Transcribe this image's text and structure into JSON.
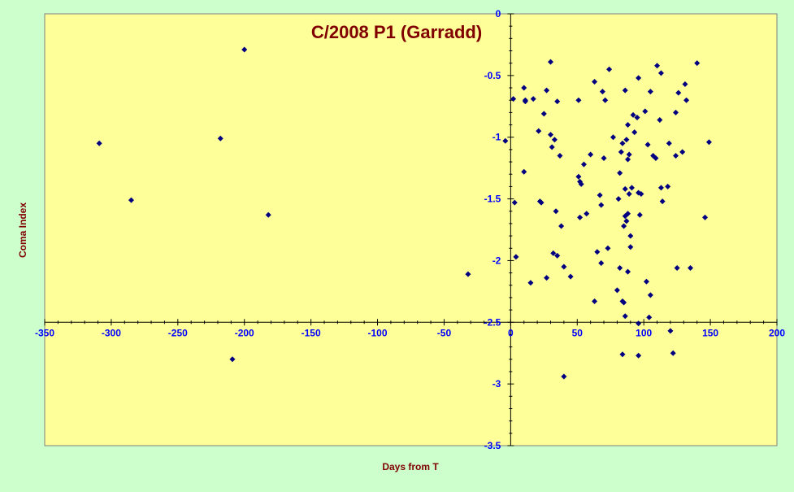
{
  "chart_data": {
    "type": "scatter",
    "title": "C/2008 P1 (Garradd)",
    "xlabel": "Days from T",
    "ylabel": "Coma Index",
    "xlim": [
      -350,
      200
    ],
    "ylim": [
      -3.5,
      0
    ],
    "x_ticks": [
      "-350",
      "-300",
      "-250",
      "-200",
      "-150",
      "-100",
      "-50",
      "0",
      "50",
      "100",
      "150",
      "200"
    ],
    "y_ticks": [
      "0",
      "-0.5",
      "-1",
      "-1.5",
      "-2",
      "-2.5",
      "-3",
      "-3.5"
    ],
    "grid": false,
    "legend": false,
    "colors": {
      "background": "#CCFFCC",
      "plot_area": "#FFFF99",
      "marker": "#000080",
      "tick_labels": "#0000FF",
      "titles": "#800000"
    },
    "series": [
      {
        "marker": "diamond",
        "points": [
          [
            -309,
            -1.05
          ],
          [
            -285,
            -1.51
          ],
          [
            -218,
            -1.01
          ],
          [
            -209,
            -2.8
          ],
          [
            -200,
            -0.29
          ],
          [
            -182,
            -1.63
          ],
          [
            -32,
            -2.11
          ],
          [
            -4,
            -1.03
          ],
          [
            2,
            -0.69
          ],
          [
            3,
            -1.53
          ],
          [
            4,
            -1.97
          ],
          [
            10,
            -0.6
          ],
          [
            10,
            -1.28
          ],
          [
            11,
            -0.7
          ],
          [
            11,
            -0.71
          ],
          [
            15,
            -2.18
          ],
          [
            17,
            -0.69
          ],
          [
            21,
            -0.95
          ],
          [
            22,
            -1.52
          ],
          [
            23,
            -1.53
          ],
          [
            25,
            -0.81
          ],
          [
            27,
            -2.14
          ],
          [
            27,
            -0.62
          ],
          [
            30,
            -0.39
          ],
          [
            30,
            -0.98
          ],
          [
            31,
            -1.08
          ],
          [
            32,
            -1.94
          ],
          [
            33,
            -1.02
          ],
          [
            34,
            -1.6
          ],
          [
            35,
            -0.71
          ],
          [
            35,
            -1.96
          ],
          [
            37,
            -1.15
          ],
          [
            38,
            -1.72
          ],
          [
            40,
            -2.05
          ],
          [
            40,
            -2.94
          ],
          [
            45,
            -2.13
          ],
          [
            51,
            -0.7
          ],
          [
            51,
            -1.32
          ],
          [
            52,
            -1.36
          ],
          [
            52,
            -1.65
          ],
          [
            53,
            -1.38
          ],
          [
            55,
            -1.22
          ],
          [
            57,
            -1.62
          ],
          [
            60,
            -1.14
          ],
          [
            63,
            -2.33
          ],
          [
            63,
            -0.55
          ],
          [
            65,
            -1.93
          ],
          [
            67,
            -1.47
          ],
          [
            68,
            -1.55
          ],
          [
            68,
            -2.02
          ],
          [
            69,
            -0.63
          ],
          [
            70,
            -1.17
          ],
          [
            71,
            -0.7
          ],
          [
            73,
            -1.9
          ],
          [
            74,
            -0.45
          ],
          [
            77,
            -1.0
          ],
          [
            80,
            -2.24
          ],
          [
            81,
            -1.5
          ],
          [
            82,
            -2.06
          ],
          [
            82,
            -1.29
          ],
          [
            83,
            -1.12
          ],
          [
            84,
            -1.05
          ],
          [
            84,
            -2.33
          ],
          [
            84,
            -2.76
          ],
          [
            85,
            -2.34
          ],
          [
            85,
            -1.72
          ],
          [
            86,
            -1.64
          ],
          [
            86,
            -1.42
          ],
          [
            86,
            -0.62
          ],
          [
            86,
            -2.45
          ],
          [
            87,
            -1.02
          ],
          [
            87,
            -1.68
          ],
          [
            88,
            -1.18
          ],
          [
            88,
            -1.62
          ],
          [
            88,
            -0.9
          ],
          [
            88,
            -2.09
          ],
          [
            89,
            -1.14
          ],
          [
            89,
            -1.46
          ],
          [
            90,
            -1.89
          ],
          [
            90,
            -1.8
          ],
          [
            91,
            -1.41
          ],
          [
            92,
            -0.82
          ],
          [
            93,
            -0.96
          ],
          [
            95,
            -0.84
          ],
          [
            96,
            -1.45
          ],
          [
            96,
            -0.52
          ],
          [
            96,
            -2.51
          ],
          [
            96,
            -2.77
          ],
          [
            97,
            -1.63
          ],
          [
            98,
            -1.46
          ],
          [
            101,
            -0.79
          ],
          [
            102,
            -2.17
          ],
          [
            103,
            -1.06
          ],
          [
            104,
            -2.46
          ],
          [
            105,
            -0.63
          ],
          [
            105,
            -2.28
          ],
          [
            107,
            -1.15
          ],
          [
            109,
            -1.17
          ],
          [
            110,
            -0.42
          ],
          [
            112,
            -0.86
          ],
          [
            113,
            -1.41
          ],
          [
            113,
            -0.48
          ],
          [
            114,
            -1.52
          ],
          [
            118,
            -1.4
          ],
          [
            119,
            -1.05
          ],
          [
            120,
            -2.57
          ],
          [
            122,
            -2.75
          ],
          [
            124,
            -1.15
          ],
          [
            124,
            -0.8
          ],
          [
            125,
            -2.06
          ],
          [
            126,
            -0.64
          ],
          [
            129,
            -1.12
          ],
          [
            131,
            -0.57
          ],
          [
            132,
            -0.7
          ],
          [
            135,
            -2.06
          ],
          [
            140,
            -0.4
          ],
          [
            146,
            -1.65
          ],
          [
            149,
            -1.04
          ]
        ]
      }
    ]
  }
}
